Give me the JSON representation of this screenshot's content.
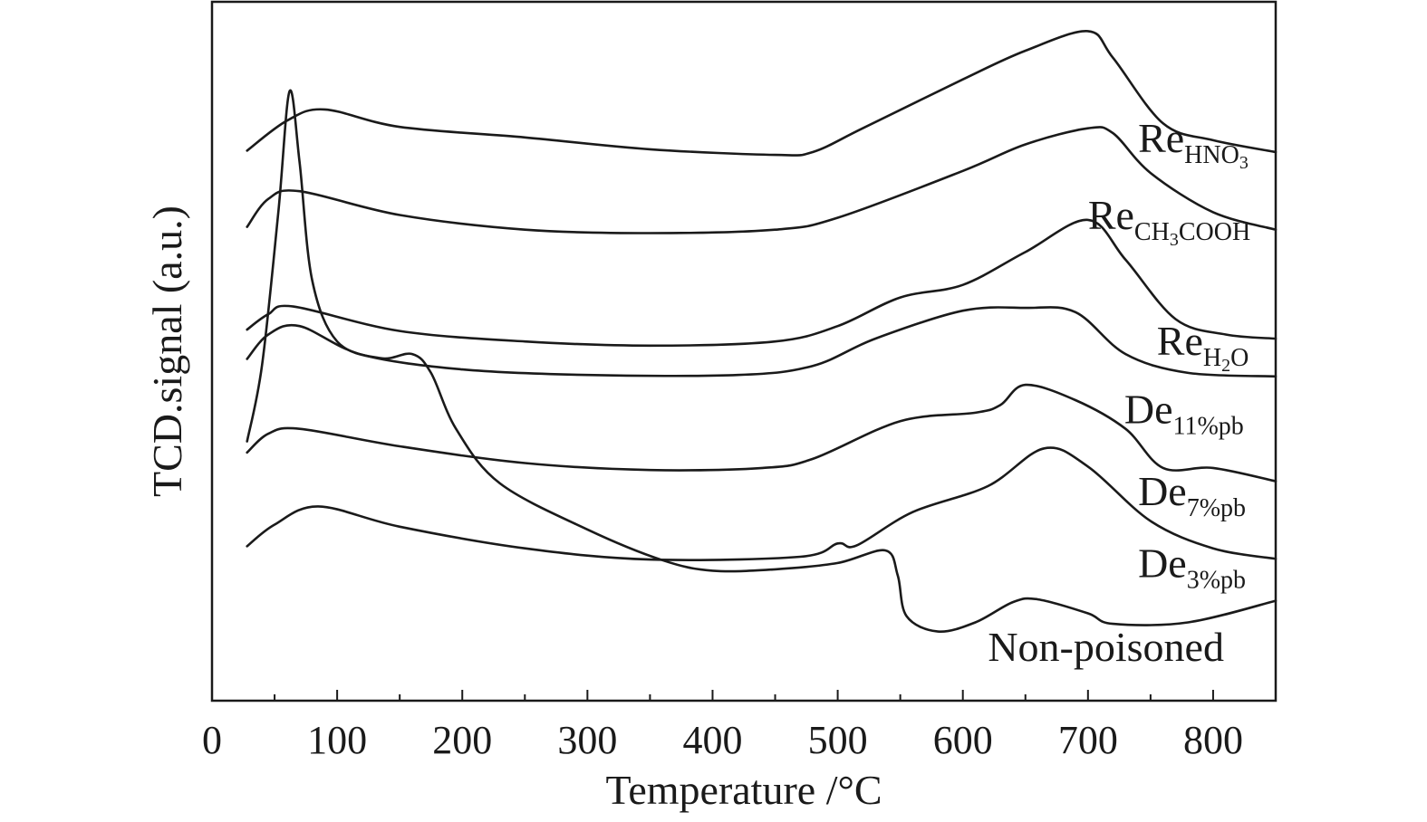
{
  "chart_data": {
    "type": "line",
    "title": "",
    "xlabel": "Temperature /°C",
    "ylabel": "TCD.signal (a.u.)",
    "xlim": [
      0,
      850
    ],
    "ylim": [
      0,
      100
    ],
    "xticks": [
      0,
      100,
      200,
      300,
      400,
      500,
      600,
      700,
      800
    ],
    "xtick_labels": [
      "0",
      "100",
      "200",
      "300",
      "400",
      "500",
      "600",
      "700",
      "800"
    ],
    "yticks_shown": false,
    "grid": false,
    "legend": "inline labels at right",
    "series": [
      {
        "name": "ReHNO3",
        "label_main": "Re",
        "label_sub": "HNO",
        "label_sub2": "3",
        "label_sub_tail": "",
        "label_at": [
          740,
          78.5
        ],
        "points": [
          [
            28,
            78.7
          ],
          [
            60,
            83.0
          ],
          [
            90,
            84.6
          ],
          [
            150,
            82.1
          ],
          [
            250,
            80.6
          ],
          [
            350,
            78.9
          ],
          [
            450,
            78.1
          ],
          [
            480,
            78.5
          ],
          [
            520,
            81.9
          ],
          [
            600,
            88.9
          ],
          [
            650,
            93.0
          ],
          [
            700,
            95.8
          ],
          [
            720,
            92.0
          ],
          [
            760,
            82.6
          ],
          [
            800,
            80.2
          ],
          [
            850,
            78.5
          ]
        ]
      },
      {
        "name": "ReCH3COOH",
        "label_main": "Re",
        "label_sub": "CH",
        "label_sub2": "3",
        "label_sub_tail": "COOH",
        "label_at": [
          700,
          67.5
        ],
        "points": [
          [
            28,
            67.8
          ],
          [
            45,
            71.8
          ],
          [
            70,
            72.9
          ],
          [
            150,
            69.5
          ],
          [
            250,
            67.4
          ],
          [
            350,
            66.9
          ],
          [
            450,
            67.4
          ],
          [
            500,
            69.1
          ],
          [
            600,
            75.8
          ],
          [
            650,
            79.6
          ],
          [
            700,
            81.9
          ],
          [
            720,
            81.2
          ],
          [
            750,
            75.5
          ],
          [
            800,
            69.9
          ],
          [
            850,
            67.4
          ]
        ]
      },
      {
        "name": "ReH2O",
        "label_main": "Re",
        "label_sub": "H",
        "label_sub2": "2",
        "label_sub_tail": "O",
        "label_at": [
          755,
          49.5
        ],
        "points": [
          [
            28,
            53.1
          ],
          [
            45,
            55.3
          ],
          [
            65,
            56.4
          ],
          [
            150,
            52.9
          ],
          [
            250,
            51.4
          ],
          [
            350,
            50.8
          ],
          [
            450,
            51.4
          ],
          [
            500,
            53.6
          ],
          [
            550,
            57.7
          ],
          [
            600,
            59.5
          ],
          [
            650,
            64.2
          ],
          [
            700,
            68.8
          ],
          [
            730,
            63.1
          ],
          [
            770,
            54.6
          ],
          [
            810,
            52.4
          ],
          [
            850,
            51.8
          ]
        ]
      },
      {
        "name": "De11%pb",
        "label_main": "De",
        "label_sub": "11%pb",
        "label_sub2": "",
        "label_sub_tail": "",
        "label_at": [
          729,
          39.7
        ],
        "points": [
          [
            28,
            48.9
          ],
          [
            45,
            52.4
          ],
          [
            70,
            53.6
          ],
          [
            120,
            49.5
          ],
          [
            200,
            47.4
          ],
          [
            300,
            46.6
          ],
          [
            420,
            46.6
          ],
          [
            480,
            47.9
          ],
          [
            530,
            51.8
          ],
          [
            600,
            55.8
          ],
          [
            650,
            56.2
          ],
          [
            690,
            55.6
          ],
          [
            730,
            49.6
          ],
          [
            780,
            46.9
          ],
          [
            850,
            46.4
          ]
        ]
      },
      {
        "name": "De7%pb",
        "label_main": "De",
        "label_sub": "7%pb",
        "label_sub2": "",
        "label_sub_tail": "",
        "label_at": [
          740,
          28.0
        ],
        "points": [
          [
            28,
            35.5
          ],
          [
            45,
            38.2
          ],
          [
            70,
            38.9
          ],
          [
            150,
            36.4
          ],
          [
            250,
            34.0
          ],
          [
            350,
            33.0
          ],
          [
            440,
            33.3
          ],
          [
            480,
            34.6
          ],
          [
            550,
            40.0
          ],
          [
            610,
            41.2
          ],
          [
            630,
            42.3
          ],
          [
            650,
            45.2
          ],
          [
            690,
            43.0
          ],
          [
            730,
            38.9
          ],
          [
            760,
            33.3
          ],
          [
            800,
            33.3
          ],
          [
            850,
            31.4
          ]
        ]
      },
      {
        "name": "De3%pb",
        "label_main": "De",
        "label_sub": "3%pb",
        "label_sub2": "",
        "label_sub_tail": "",
        "label_at": [
          740,
          17.7
        ],
        "points": [
          [
            28,
            22.1
          ],
          [
            50,
            25.2
          ],
          [
            85,
            27.8
          ],
          [
            150,
            24.9
          ],
          [
            250,
            21.8
          ],
          [
            350,
            20.2
          ],
          [
            470,
            20.6
          ],
          [
            500,
            22.5
          ],
          [
            515,
            22.2
          ],
          [
            560,
            27.0
          ],
          [
            620,
            30.7
          ],
          [
            665,
            36.1
          ],
          [
            700,
            33.5
          ],
          [
            750,
            25.7
          ],
          [
            800,
            21.8
          ],
          [
            850,
            20.3
          ]
        ]
      },
      {
        "name": "Non-poisoned",
        "label_main": "Non-poisoned",
        "label_sub": "",
        "label_sub2": "",
        "label_sub_tail": "",
        "label_at": [
          620,
          5.7
        ],
        "points": [
          [
            28,
            37.1
          ],
          [
            40,
            48.0
          ],
          [
            53,
            69.9
          ],
          [
            62,
            87.2
          ],
          [
            70,
            77.0
          ],
          [
            80,
            60.2
          ],
          [
            100,
            51.4
          ],
          [
            135,
            49.0
          ],
          [
            160,
            49.6
          ],
          [
            175,
            46.9
          ],
          [
            195,
            38.9
          ],
          [
            230,
            31.1
          ],
          [
            300,
            24.5
          ],
          [
            360,
            20.1
          ],
          [
            400,
            18.6
          ],
          [
            450,
            18.8
          ],
          [
            500,
            19.7
          ],
          [
            538,
            21.5
          ],
          [
            548,
            17.9
          ],
          [
            555,
            12.1
          ],
          [
            580,
            9.9
          ],
          [
            610,
            11.2
          ],
          [
            640,
            14.1
          ],
          [
            660,
            14.5
          ],
          [
            700,
            12.5
          ],
          [
            720,
            11.0
          ],
          [
            780,
            11.2
          ],
          [
            850,
            14.3
          ]
        ]
      }
    ]
  }
}
